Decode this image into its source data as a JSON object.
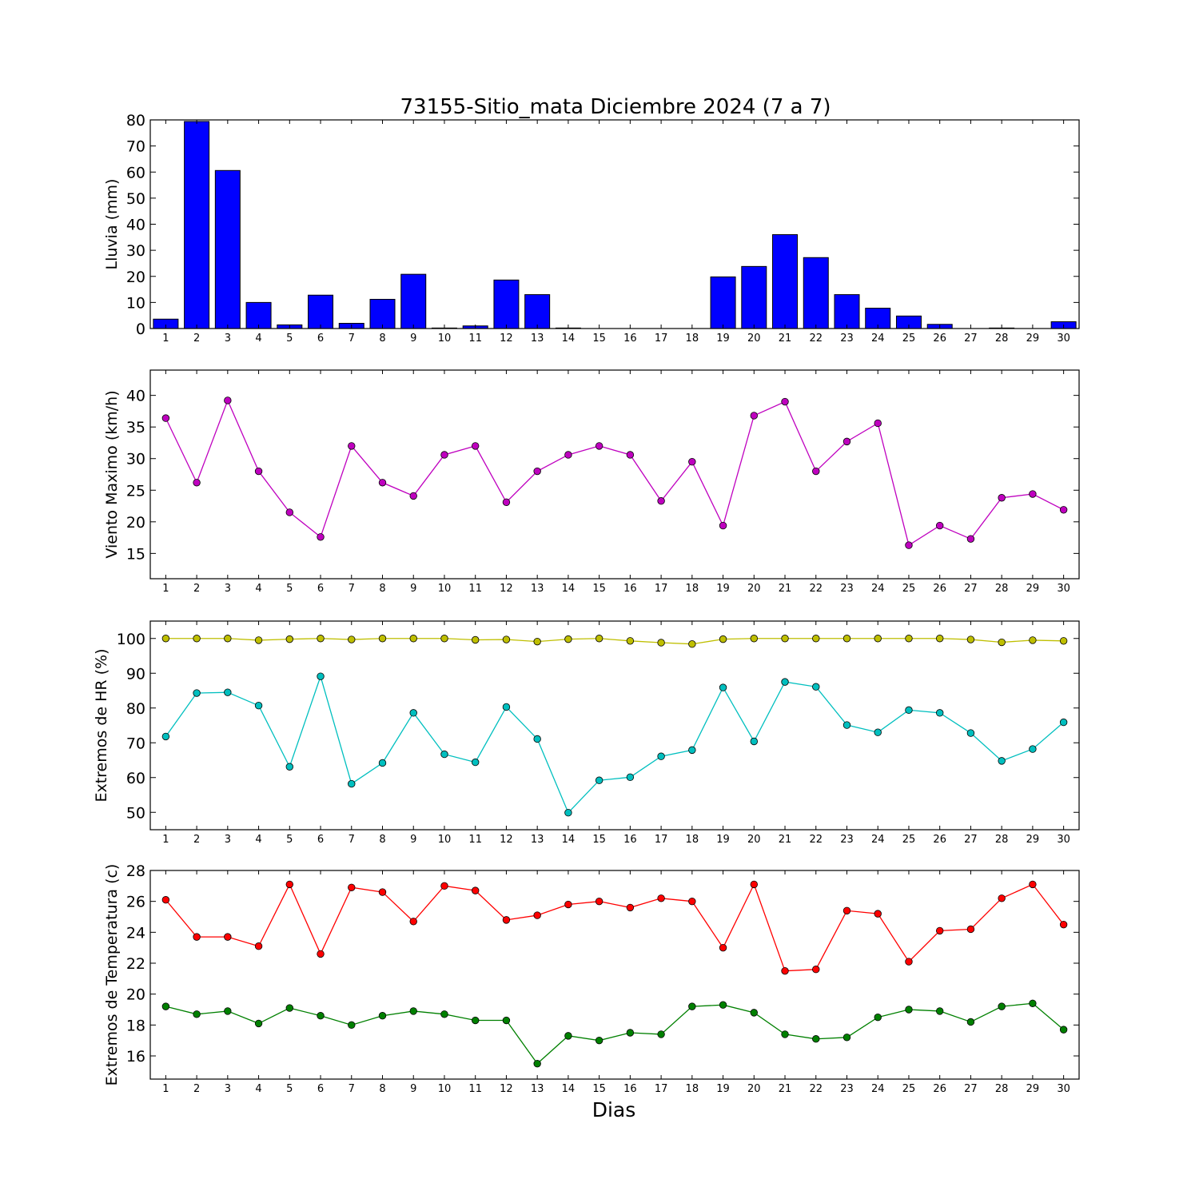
{
  "figure_title": "73155-Sitio_mata Diciembre 2024  (7 a 7)",
  "xlabel": "Dias",
  "chart_data": [
    {
      "type": "bar",
      "ylabel": "Lluvia (mm)",
      "ylim": [
        0,
        80
      ],
      "yticks": [
        0,
        10,
        20,
        30,
        40,
        50,
        60,
        70,
        80
      ],
      "x": [
        1,
        2,
        3,
        4,
        5,
        6,
        7,
        8,
        9,
        10,
        11,
        12,
        13,
        14,
        15,
        16,
        17,
        18,
        19,
        20,
        21,
        22,
        23,
        24,
        25,
        26,
        27,
        28,
        29,
        30
      ],
      "xtick_labels": [
        "1",
        "2",
        "3",
        "4",
        "5",
        "6",
        "7",
        "8",
        "9",
        "10",
        "11",
        "12",
        "13",
        "14",
        "15",
        "16",
        "17",
        "18",
        "19",
        "20",
        "21",
        "22",
        "23",
        "24",
        "25",
        "26",
        "27",
        "28",
        "29",
        "30"
      ],
      "color": "#0000ff",
      "series": [
        {
          "values": [
            3.6,
            79.4,
            60.6,
            10.0,
            1.4,
            12.8,
            2.0,
            11.2,
            20.8,
            0.2,
            1.0,
            18.6,
            13.0,
            0.2,
            0.0,
            0.0,
            0.0,
            0.0,
            19.8,
            23.8,
            36.0,
            27.2,
            13.0,
            7.8,
            4.8,
            1.6,
            0.0,
            0.2,
            0.0,
            2.6
          ]
        }
      ]
    },
    {
      "type": "line",
      "ylabel": "Viento Maximo (km/h)",
      "ylim": [
        11,
        44
      ],
      "yticks": [
        15,
        20,
        25,
        30,
        35,
        40
      ],
      "x": [
        1,
        2,
        3,
        4,
        5,
        6,
        7,
        8,
        9,
        10,
        11,
        12,
        13,
        14,
        15,
        16,
        17,
        18,
        19,
        20,
        21,
        22,
        23,
        24,
        25,
        26,
        27,
        28,
        29,
        30
      ],
      "xtick_labels": [
        "1",
        "2",
        "3",
        "4",
        "5",
        "6",
        "7",
        "8",
        "9",
        "10",
        "11",
        "12",
        "13",
        "14",
        "15",
        "16",
        "17",
        "18",
        "19",
        "20",
        "21",
        "22",
        "23",
        "24",
        "25",
        "26",
        "27",
        "28",
        "29",
        "30"
      ],
      "series": [
        {
          "color": "#bf00bf",
          "values": [
            36.4,
            26.2,
            39.2,
            28.0,
            21.5,
            17.6,
            32.0,
            26.2,
            24.1,
            30.6,
            32.0,
            23.1,
            28.0,
            30.6,
            32.0,
            30.6,
            23.3,
            29.5,
            19.4,
            36.8,
            39.0,
            28.0,
            32.7,
            35.6,
            16.3,
            19.4,
            17.3,
            23.8,
            24.4,
            21.9
          ]
        }
      ]
    },
    {
      "type": "line",
      "ylabel": "Extremos de HR (%)",
      "ylim": [
        45,
        105
      ],
      "yticks": [
        50,
        60,
        70,
        80,
        90,
        100
      ],
      "x": [
        1,
        2,
        3,
        4,
        5,
        6,
        7,
        8,
        9,
        10,
        11,
        12,
        13,
        14,
        15,
        16,
        17,
        18,
        19,
        20,
        21,
        22,
        23,
        24,
        25,
        26,
        27,
        28,
        29,
        30
      ],
      "xtick_labels": [
        "1",
        "2",
        "3",
        "4",
        "5",
        "6",
        "7",
        "8",
        "9",
        "10",
        "11",
        "12",
        "13",
        "14",
        "15",
        "16",
        "17",
        "18",
        "19",
        "20",
        "21",
        "22",
        "23",
        "24",
        "25",
        "26",
        "27",
        "28",
        "29",
        "30"
      ],
      "series": [
        {
          "color": "#bfbf00",
          "values": [
            100,
            100,
            100,
            99.5,
            99.8,
            100,
            99.7,
            100,
            100,
            100,
            99.6,
            99.7,
            99.1,
            99.8,
            100,
            99.3,
            98.8,
            98.4,
            99.8,
            100,
            100,
            100,
            100,
            100,
            100,
            100,
            99.7,
            98.9,
            99.5,
            99.3
          ]
        },
        {
          "color": "#00bfbf",
          "values": [
            71.8,
            84.3,
            84.5,
            80.7,
            63.1,
            89.1,
            58.2,
            64.2,
            78.6,
            66.7,
            64.4,
            80.3,
            71.1,
            49.9,
            59.2,
            60.1,
            66.1,
            67.9,
            85.9,
            70.4,
            87.5,
            86.1,
            75.1,
            73.0,
            79.4,
            78.6,
            72.8,
            64.8,
            68.2,
            75.9
          ]
        }
      ]
    },
    {
      "type": "line",
      "ylabel": "Extremos de Temperatura (c)",
      "ylim": [
        14.5,
        28
      ],
      "yticks": [
        16,
        18,
        20,
        22,
        24,
        26,
        28
      ],
      "x": [
        1,
        2,
        3,
        4,
        5,
        6,
        7,
        8,
        9,
        10,
        11,
        12,
        13,
        14,
        15,
        16,
        17,
        18,
        19,
        20,
        21,
        22,
        23,
        24,
        25,
        26,
        27,
        28,
        29,
        30
      ],
      "xtick_labels": [
        "1",
        "2",
        "3",
        "4",
        "5",
        "6",
        "7",
        "8",
        "9",
        "10",
        "11",
        "12",
        "13",
        "14",
        "15",
        "16",
        "17",
        "18",
        "19",
        "20",
        "21",
        "22",
        "23",
        "24",
        "25",
        "26",
        "27",
        "28",
        "29",
        "30"
      ],
      "series": [
        {
          "color": "#ff0000",
          "values": [
            26.1,
            23.7,
            23.7,
            23.1,
            27.1,
            22.6,
            26.9,
            26.6,
            24.7,
            27.0,
            26.7,
            24.8,
            25.1,
            25.8,
            26.0,
            25.6,
            26.2,
            26.0,
            23.0,
            27.1,
            21.5,
            21.6,
            25.4,
            25.2,
            22.1,
            24.1,
            24.2,
            26.2,
            27.1,
            24.5
          ]
        },
        {
          "color": "#008000",
          "values": [
            19.2,
            18.7,
            18.9,
            18.1,
            19.1,
            18.6,
            18.0,
            18.6,
            18.9,
            18.7,
            18.3,
            18.3,
            15.5,
            17.3,
            17.0,
            17.5,
            17.4,
            19.2,
            19.3,
            18.8,
            17.4,
            17.1,
            17.2,
            18.5,
            19.0,
            18.9,
            18.2,
            19.2,
            19.4,
            17.7
          ]
        }
      ]
    }
  ]
}
